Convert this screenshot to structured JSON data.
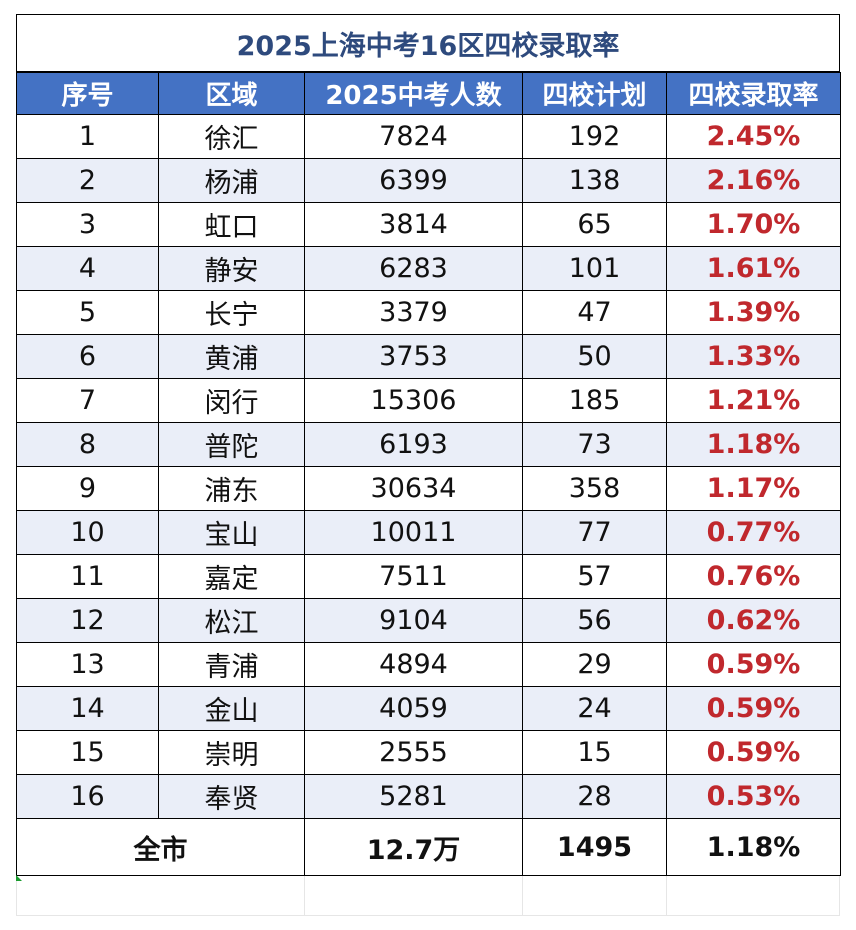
{
  "title": "2025上海中考16区四校录取率",
  "headers": [
    "序号",
    "区域",
    "2025中考人数",
    "四校计划",
    "四校录取率"
  ],
  "rows": [
    [
      "1",
      "徐汇",
      "7824",
      "192",
      "2.45%"
    ],
    [
      "2",
      "杨浦",
      "6399",
      "138",
      "2.16%"
    ],
    [
      "3",
      "虹口",
      "3814",
      "65",
      "1.70%"
    ],
    [
      "4",
      "静安",
      "6283",
      "101",
      "1.61%"
    ],
    [
      "5",
      "长宁",
      "3379",
      "47",
      "1.39%"
    ],
    [
      "6",
      "黄浦",
      "3753",
      "50",
      "1.33%"
    ],
    [
      "7",
      "闵行",
      "15306",
      "185",
      "1.21%"
    ],
    [
      "8",
      "普陀",
      "6193",
      "73",
      "1.18%"
    ],
    [
      "9",
      "浦东",
      "30634",
      "358",
      "1.17%"
    ],
    [
      "10",
      "宝山",
      "10011",
      "77",
      "0.77%"
    ],
    [
      "11",
      "嘉定",
      "7511",
      "57",
      "0.76%"
    ],
    [
      "12",
      "松江",
      "9104",
      "56",
      "0.62%"
    ],
    [
      "13",
      "青浦",
      "4894",
      "29",
      "0.59%"
    ],
    [
      "14",
      "金山",
      "4059",
      "24",
      "0.59%"
    ],
    [
      "15",
      "崇明",
      "2555",
      "15",
      "0.59%"
    ],
    [
      "16",
      "奉贤",
      "5281",
      "28",
      "0.53%"
    ]
  ],
  "total": {
    "label": "全市",
    "students": "12.7万",
    "plan": "1495",
    "rate": "1.18%"
  },
  "colors": {
    "title_text": "#2e4a7d",
    "header_bg": "#4472c4",
    "header_text": "#ffffff",
    "alt_row_bg": "#eaeef8",
    "rate_text": "#c0282d"
  }
}
